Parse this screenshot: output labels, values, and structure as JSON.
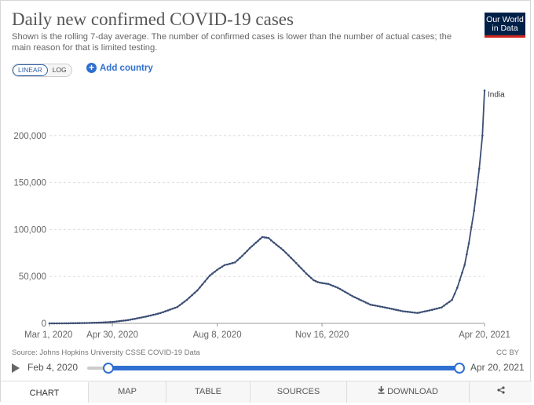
{
  "header": {
    "title": "Daily new confirmed COVID-19 cases",
    "subtitle": "Shown is the rolling 7-day average. The number of confirmed cases is lower than the number of actual cases; the main reason for that is limited testing.",
    "logo_line1": "Our World",
    "logo_line2": "in Data"
  },
  "controls": {
    "linear_label": "LINEAR",
    "log_label": "LOG",
    "add_country_label": "Add country",
    "plus_symbol": "+"
  },
  "chart_data": {
    "type": "line",
    "title": "Daily new confirmed COVID-19 cases",
    "xlabel": "",
    "ylabel": "",
    "x_ticks": [
      "Mar 1, 2020",
      "Apr 30, 2020",
      "Aug 8, 2020",
      "Nov 16, 2020",
      "Apr 20, 2021"
    ],
    "y_ticks": [
      "0",
      "50,000",
      "100,000",
      "150,000",
      "200,000"
    ],
    "ylim": [
      0,
      250000
    ],
    "series": [
      {
        "name": "India",
        "color": "#3c4e74",
        "x": [
          "2020-03-01",
          "2020-03-15",
          "2020-04-01",
          "2020-04-15",
          "2020-04-30",
          "2020-05-15",
          "2020-06-01",
          "2020-06-15",
          "2020-07-01",
          "2020-07-10",
          "2020-07-20",
          "2020-08-01",
          "2020-08-08",
          "2020-08-15",
          "2020-08-25",
          "2020-09-01",
          "2020-09-08",
          "2020-09-16",
          "2020-09-20",
          "2020-09-26",
          "2020-10-01",
          "2020-10-10",
          "2020-10-20",
          "2020-11-01",
          "2020-11-08",
          "2020-11-12",
          "2020-11-16",
          "2020-11-22",
          "2020-12-01",
          "2020-12-15",
          "2021-01-01",
          "2021-01-15",
          "2021-02-01",
          "2021-02-15",
          "2021-03-01",
          "2021-03-10",
          "2021-03-20",
          "2021-03-25",
          "2021-04-01",
          "2021-04-05",
          "2021-04-10",
          "2021-04-15",
          "2021-04-18",
          "2021-04-20"
        ],
        "values": [
          0,
          50,
          300,
          700,
          1500,
          3500,
          7200,
          11000,
          17500,
          25000,
          35000,
          51000,
          57000,
          62000,
          65000,
          72000,
          80000,
          88000,
          92000,
          91000,
          86000,
          78000,
          67000,
          53000,
          46000,
          44000,
          43000,
          42000,
          38000,
          29000,
          20000,
          17000,
          13000,
          11000,
          14500,
          17000,
          25000,
          38000,
          62000,
          85000,
          120000,
          165000,
          200000,
          248000
        ]
      }
    ],
    "series_label": "India"
  },
  "footer": {
    "source": "Source: Johns Hopkins University CSSE COVID-19 Data",
    "license": "CC BY"
  },
  "timeline": {
    "start_date": "Feb 4, 2020",
    "end_date": "Apr 20, 2021"
  },
  "tabs": {
    "chart": "CHART",
    "map": "MAP",
    "table": "TABLE",
    "sources": "SOURCES",
    "download": "DOWNLOAD",
    "share_symbol": "⋖"
  }
}
